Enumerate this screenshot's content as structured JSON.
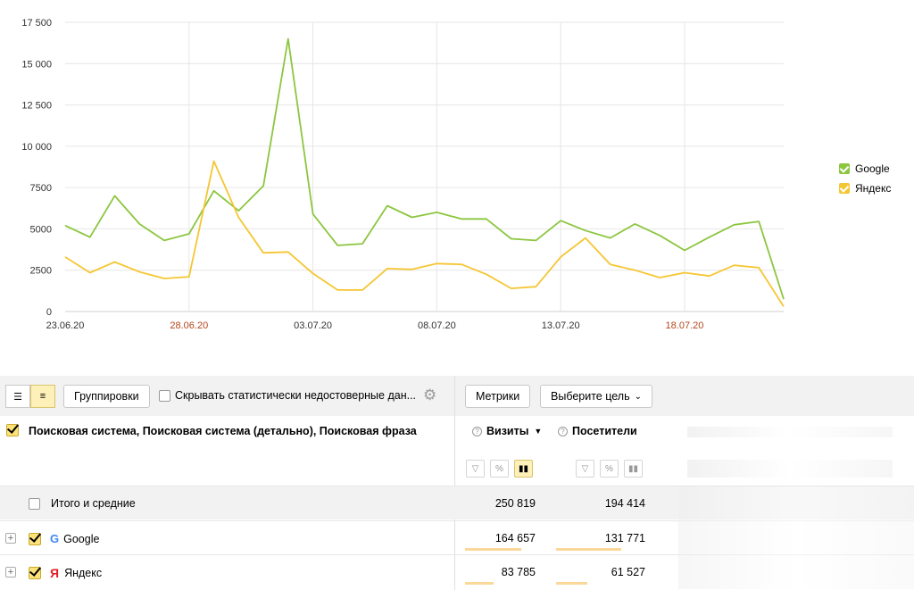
{
  "chart_data": {
    "type": "line",
    "x": [
      "23.06.20",
      "24.06.20",
      "25.06.20",
      "26.06.20",
      "27.06.20",
      "28.06.20",
      "29.06.20",
      "30.06.20",
      "01.07.20",
      "02.07.20",
      "03.07.20",
      "04.07.20",
      "05.07.20",
      "06.07.20",
      "07.07.20",
      "08.07.20",
      "09.07.20",
      "10.07.20",
      "11.07.20",
      "12.07.20",
      "13.07.20",
      "14.07.20",
      "15.07.20",
      "16.07.20",
      "17.07.20",
      "18.07.20",
      "19.07.20",
      "20.07.20",
      "21.07.20",
      "22.07.20"
    ],
    "x_ticks": [
      {
        "label": "23.06.20",
        "weekend": false
      },
      {
        "label": "28.06.20",
        "weekend": true
      },
      {
        "label": "03.07.20",
        "weekend": false
      },
      {
        "label": "08.07.20",
        "weekend": false
      },
      {
        "label": "13.07.20",
        "weekend": false
      },
      {
        "label": "18.07.20",
        "weekend": true
      }
    ],
    "y_ticks": [
      "0",
      "2500",
      "5000",
      "7500",
      "10 000",
      "12 500",
      "15 000",
      "17 500"
    ],
    "ylim": [
      0,
      17500
    ],
    "grid": true,
    "legend_position": "right",
    "series": [
      {
        "name": "Google",
        "color": "#8cc63f",
        "values": [
          5200,
          4500,
          7000,
          5300,
          4300,
          4700,
          7300,
          6100,
          7600,
          16500,
          5900,
          4000,
          4100,
          6400,
          5700,
          6000,
          5600,
          5600,
          4400,
          4300,
          5500,
          4900,
          4450,
          5300,
          4600,
          3700,
          4500,
          5250,
          5450,
          750
        ]
      },
      {
        "name": "Яндекс",
        "color": "#f5c633",
        "values": [
          3300,
          2350,
          3000,
          2400,
          2000,
          2100,
          9100,
          5700,
          3550,
          3600,
          2300,
          1300,
          1300,
          2600,
          2550,
          2900,
          2850,
          2250,
          1400,
          1500,
          3300,
          4450,
          2850,
          2500,
          2050,
          2350,
          2150,
          2800,
          2650,
          300
        ]
      }
    ],
    "weekend_color": "#b5451b"
  },
  "toolbar": {
    "groupings": "Группировки",
    "hide_unreliable": "Скрывать статистически недостоверные дан...",
    "metrics": "Метрики",
    "goal": "Выберите цель"
  },
  "table": {
    "dimensions": "Поисковая система, Поисковая система (детально), Поисковая фраза",
    "visits": "Визиты",
    "visitors": "Посетители",
    "total_label": "Итого и средние",
    "rows": [
      {
        "label": "Итого и средние",
        "visits": "250 819",
        "visitors": "194 414"
      },
      {
        "label": "Google",
        "visits": "164 657",
        "visitors": "131 771",
        "visits_share": 0.66,
        "visitors_share": 0.68
      },
      {
        "label": "Яндекс",
        "visits": "83 785",
        "visitors": "61 527",
        "visits_share": 0.33,
        "visitors_share": 0.32
      }
    ]
  }
}
